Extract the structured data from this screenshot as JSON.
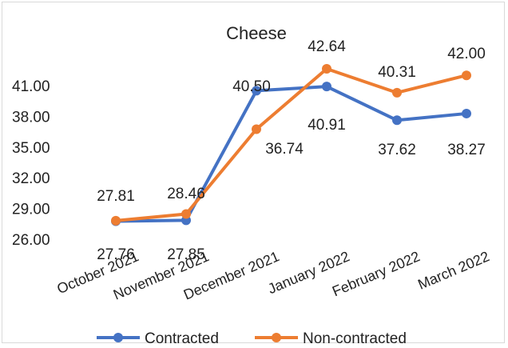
{
  "chart_data": {
    "type": "line",
    "title": "Cheese",
    "xlabel": "",
    "ylabel": "",
    "categories": [
      "October 2021",
      "November 2021",
      "December 2021",
      "January 2022",
      "February 2022",
      "March 2022"
    ],
    "series": [
      {
        "name": "Contracted",
        "color": "#4472C4",
        "values": [
          27.76,
          27.85,
          40.5,
          40.91,
          37.62,
          38.27
        ]
      },
      {
        "name": "Non-contracted",
        "color": "#ED7D31",
        "values": [
          27.81,
          28.46,
          36.74,
          42.64,
          40.31,
          42.0
        ]
      }
    ],
    "value_labels": [
      [
        "27.76",
        "27.85",
        "40.50",
        "40.91",
        "37.62",
        "38.27"
      ],
      [
        "27.81",
        "28.46",
        "36.74",
        "42.64",
        "40.31",
        "42.00"
      ]
    ],
    "yticks": [
      "26.00",
      "29.00",
      "32.00",
      "35.00",
      "38.00",
      "41.00"
    ],
    "ylim": [
      26,
      41
    ],
    "grid": false,
    "legend_position": "bottom"
  }
}
